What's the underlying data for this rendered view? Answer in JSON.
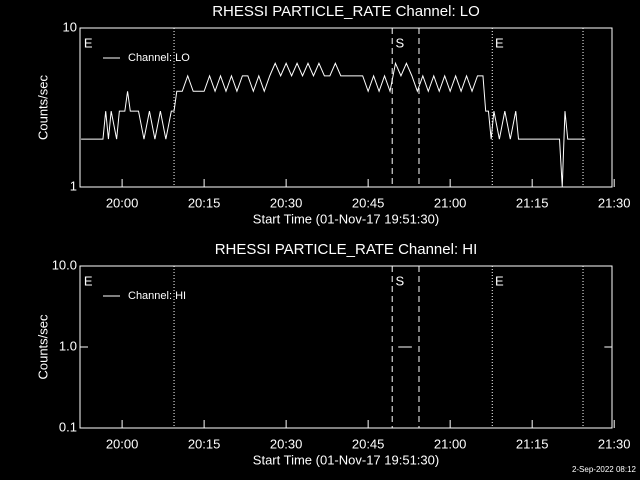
{
  "chart_data": [
    {
      "type": "line",
      "title": "RHESSI PARTICLE_RATE Channel: LO",
      "xlabel": "Start Time (01-Nov-17 19:51:30)",
      "ylabel": "Counts/sec",
      "log_y": true,
      "ylim": [
        1,
        10
      ],
      "yticks": [
        1,
        10
      ],
      "xlim": [
        1192.3,
        1289.6
      ],
      "xticks": [
        {
          "value": 1200,
          "label": "20:00"
        },
        {
          "value": 1215,
          "label": "20:15"
        },
        {
          "value": 1230,
          "label": "20:30"
        },
        {
          "value": 1245,
          "label": "20:45"
        },
        {
          "value": 1260,
          "label": "21:00"
        },
        {
          "value": 1275,
          "label": "21:15"
        },
        {
          "value": 1290,
          "label": "21:30"
        }
      ],
      "vlines": [
        {
          "x": 1209.5,
          "style": "dotted"
        },
        {
          "x": 1249.4,
          "style": "dashed"
        },
        {
          "x": 1254.3,
          "style": "dashed"
        },
        {
          "x": 1267.7,
          "style": "dotted"
        },
        {
          "x": 1284.3,
          "style": "dotted"
        }
      ],
      "annotations": [
        {
          "x": 1193,
          "text": "E"
        },
        {
          "x": 1250,
          "text": "S"
        },
        {
          "x": 1268.2,
          "text": "E"
        }
      ],
      "legend": "upper left",
      "series": [
        {
          "name": "Channel: LO",
          "color": "#ffffff",
          "x": [
            1192.5,
            1196.5,
            1197,
            1197.5,
            1198,
            1199,
            1199.5,
            1200.5,
            1201,
            1201.5,
            1203,
            1204,
            1205,
            1206,
            1207,
            1208,
            1209,
            1209.5,
            1210,
            1211,
            1212,
            1213,
            1214,
            1215,
            1216,
            1217,
            1218,
            1219,
            1220,
            1221,
            1222,
            1223,
            1224,
            1225,
            1226,
            1227,
            1228,
            1229,
            1230,
            1231,
            1232,
            1233,
            1234,
            1235,
            1236,
            1237,
            1238,
            1239,
            1240,
            1241,
            1242,
            1243,
            1244,
            1245,
            1246,
            1247,
            1248,
            1249,
            1250,
            1251,
            1252,
            1253,
            1254,
            1255,
            1256,
            1257,
            1258,
            1259,
            1260,
            1261,
            1262,
            1263,
            1264,
            1265,
            1266,
            1266.5,
            1267,
            1267.5,
            1268,
            1269,
            1270,
            1271,
            1272,
            1272.5,
            1280,
            1280.5,
            1281,
            1281.5,
            1284.7
          ],
          "values": [
            2,
            2,
            3,
            2,
            3,
            2,
            3,
            3,
            4,
            3,
            3,
            2,
            3,
            2,
            3,
            2,
            3,
            3,
            4,
            4,
            5,
            4,
            4,
            4,
            5,
            4,
            5,
            4,
            5,
            4,
            5,
            5,
            4,
            5,
            4,
            5,
            6,
            5,
            6,
            5,
            6,
            5,
            6,
            5,
            6,
            5,
            5,
            6,
            5,
            5,
            5,
            5,
            5,
            4,
            5,
            4,
            5,
            4,
            6,
            5,
            6,
            5,
            4,
            5,
            4,
            5,
            4,
            5,
            4,
            5,
            4,
            5,
            4,
            5,
            5,
            3,
            3,
            2,
            3,
            2,
            3,
            2,
            3,
            2,
            2,
            1,
            3,
            2,
            2
          ]
        }
      ]
    },
    {
      "type": "line",
      "title": "RHESSI PARTICLE_RATE Channel: HI",
      "xlabel": "Start Time (01-Nov-17 19:51:30)",
      "ylabel": "Counts/sec",
      "log_y": true,
      "ylim": [
        0.1,
        10
      ],
      "yticks": [
        {
          "value": 0.1,
          "label": "0.1"
        },
        {
          "value": 1,
          "label": "1.0"
        },
        {
          "value": 10,
          "label": "10.0"
        }
      ],
      "xlim": [
        1192.3,
        1289.6
      ],
      "xticks": [
        {
          "value": 1200,
          "label": "20:00"
        },
        {
          "value": 1215,
          "label": "20:15"
        },
        {
          "value": 1230,
          "label": "20:30"
        },
        {
          "value": 1245,
          "label": "20:45"
        },
        {
          "value": 1260,
          "label": "21:00"
        },
        {
          "value": 1275,
          "label": "21:15"
        },
        {
          "value": 1290,
          "label": "21:30"
        }
      ],
      "vlines": [
        {
          "x": 1209.5,
          "style": "dotted"
        },
        {
          "x": 1249.4,
          "style": "dashed"
        },
        {
          "x": 1254.3,
          "style": "dashed"
        },
        {
          "x": 1267.7,
          "style": "dotted"
        },
        {
          "x": 1284.3,
          "style": "dotted"
        }
      ],
      "annotations": [
        {
          "x": 1193,
          "text": "E"
        },
        {
          "x": 1250,
          "text": "S"
        },
        {
          "x": 1268.2,
          "text": "E"
        }
      ],
      "legend": "upper left",
      "series": [
        {
          "name": "Channel: HI",
          "color": "#ffffff",
          "x": [
            1250.5,
            1253,
            1253.5,
            1288.2,
            1289.5
          ],
          "values": [
            1,
            1,
            null,
            1,
            1
          ]
        }
      ]
    }
  ],
  "footer": "2-Sep-2022 08:12"
}
